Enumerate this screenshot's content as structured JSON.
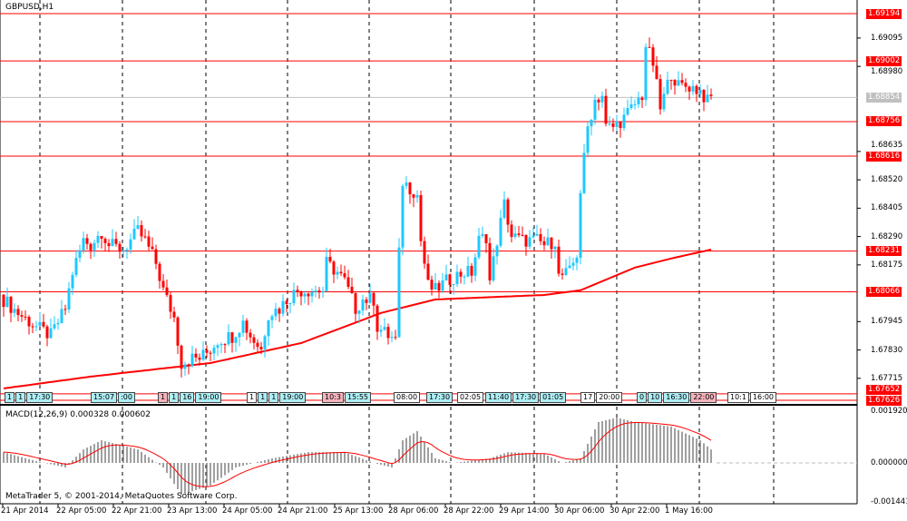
{
  "symbol_label": "GBPUSD,H1",
  "macd_label": "MACD(12,26,9) 0.000328 0.000602",
  "copyright": "MetaTrader 5, © 2001-2014, MetaQuotes Software Corp.",
  "colors": {
    "bull": "#1ec8ff",
    "bear": "#ff0000",
    "ma": "#ff0000",
    "level": "#ff0000",
    "bid": "#c0c0c0",
    "macd_hist": "#808080",
    "signal": "#ff0000"
  },
  "price_levels": [
    {
      "label": "1.69194",
      "value": 1.69194
    },
    {
      "label": "1.69002",
      "value": 1.69002
    },
    {
      "label": "1.68756",
      "value": 1.68756
    },
    {
      "label": "1.68616",
      "value": 1.68616
    },
    {
      "label": "1.68231",
      "value": 1.68231
    },
    {
      "label": "1.68066",
      "value": 1.68066
    },
    {
      "label": "1.67652",
      "value": 1.67652
    },
    {
      "label": "1.67626",
      "value": 1.67626
    }
  ],
  "bid": {
    "label": "1.68854",
    "value": 1.68854
  },
  "y_ticks": [
    "1.69095",
    "1.68980",
    "1.68635",
    "1.68520",
    "1.68405",
    "1.68290",
    "1.68175",
    "1.67945",
    "1.67830",
    "1.67715"
  ],
  "macd_ticks": [
    "0.001920",
    "0.000000",
    "-0.001441"
  ],
  "x_ticks": [
    "21 Apr 2014",
    "22 Apr 05:00",
    "22 Apr 21:00",
    "23 Apr 13:00",
    "24 Apr 05:00",
    "24 Apr 21:00",
    "25 Apr 13:00",
    "28 Apr 06:00",
    "28 Apr 22:00",
    "29 Apr 14:00",
    "30 Apr 06:00",
    "30 Apr 22:00",
    "1 May 16:00"
  ],
  "events": [
    {
      "text": "1",
      "style": "blue"
    },
    {
      "text": "1",
      "style": "blue"
    },
    {
      "text": "17:30",
      "style": "blue"
    },
    {
      "text": "15:07",
      "style": "blue"
    },
    {
      "text": ":00",
      "style": "blue"
    },
    {
      "text": "1",
      "style": "pink"
    },
    {
      "text": "1",
      "style": "blue"
    },
    {
      "text": "16",
      "style": "blue"
    },
    {
      "text": "19:00",
      "style": "blue"
    },
    {
      "text": "1",
      "style": ""
    },
    {
      "text": "1",
      "style": "blue"
    },
    {
      "text": "1",
      "style": "blue"
    },
    {
      "text": "19:00",
      "style": "blue"
    },
    {
      "text": "10:3",
      "style": "pink"
    },
    {
      "text": "15:55",
      "style": "blue"
    },
    {
      "text": "08:00",
      "style": ""
    },
    {
      "text": "17:30",
      "style": "blue"
    },
    {
      "text": "02:05",
      "style": ""
    },
    {
      "text": "11:40",
      "style": "blue"
    },
    {
      "text": "17:30",
      "style": "blue"
    },
    {
      "text": "01:05",
      "style": "blue"
    },
    {
      "text": "17",
      "style": ""
    },
    {
      "text": "20:00",
      "style": ""
    },
    {
      "text": "0",
      "style": "blue"
    },
    {
      "text": "10",
      "style": "blue"
    },
    {
      "text": "16:30",
      "style": "blue"
    },
    {
      "text": "22:00",
      "style": "pink"
    },
    {
      "text": "10:1",
      "style": ""
    },
    {
      "text": "16:00",
      "style": ""
    }
  ],
  "chart_data": {
    "type": "candlestick",
    "timeframe": "H1",
    "close_keypoints": [
      [
        0,
        1.68035
      ],
      [
        4,
        1.67979
      ],
      [
        9,
        1.67924
      ],
      [
        13,
        1.67888
      ],
      [
        17,
        1.67998
      ],
      [
        19,
        1.68145
      ],
      [
        22,
        1.68274
      ],
      [
        24,
        1.68256
      ],
      [
        27,
        1.68311
      ],
      [
        29,
        1.68256
      ],
      [
        33,
        1.68237
      ],
      [
        37,
        1.68311
      ],
      [
        39,
        1.68274
      ],
      [
        42,
        1.68182
      ],
      [
        44,
        1.68072
      ],
      [
        47,
        1.67961
      ],
      [
        49,
        1.67777
      ],
      [
        52,
        1.67796
      ],
      [
        54,
        1.67796
      ],
      [
        57,
        1.67832
      ],
      [
        59,
        1.67869
      ],
      [
        63,
        1.67888
      ],
      [
        66,
        1.67943
      ],
      [
        68,
        1.67888
      ],
      [
        71,
        1.67832
      ],
      [
        73,
        1.67979
      ],
      [
        76,
        1.67998
      ],
      [
        78,
        1.68035
      ],
      [
        81,
        1.68072
      ],
      [
        84,
        1.68072
      ],
      [
        88,
        1.68072
      ],
      [
        89,
        1.68182
      ],
      [
        92,
        1.68145
      ],
      [
        94,
        1.68108
      ],
      [
        97,
        1.67998
      ],
      [
        99,
        1.68035
      ],
      [
        102,
        1.68035
      ],
      [
        103,
        1.67924
      ],
      [
        106,
        1.67888
      ],
      [
        108,
        1.67869
      ],
      [
        109,
        1.68219
      ],
      [
        110,
        1.68513
      ],
      [
        113,
        1.68476
      ],
      [
        114,
        1.68458
      ],
      [
        115,
        1.68274
      ],
      [
        117,
        1.6809
      ],
      [
        119,
        1.68072
      ],
      [
        122,
        1.68108
      ],
      [
        124,
        1.68127
      ],
      [
        127,
        1.68145
      ],
      [
        129,
        1.68145
      ],
      [
        131,
        1.68274
      ],
      [
        133,
        1.68292
      ],
      [
        134,
        1.68108
      ],
      [
        136,
        1.68274
      ],
      [
        138,
        1.68421
      ],
      [
        140,
        1.68292
      ],
      [
        143,
        1.68274
      ],
      [
        147,
        1.68274
      ],
      [
        149,
        1.68256
      ],
      [
        152,
        1.68274
      ],
      [
        153,
        1.68127
      ],
      [
        156,
        1.68145
      ],
      [
        158,
        1.68219
      ],
      [
        159,
        1.68476
      ],
      [
        161,
        1.68734
      ],
      [
        163,
        1.68844
      ],
      [
        165,
        1.68863
      ],
      [
        166,
        1.68734
      ],
      [
        168,
        1.68734
      ],
      [
        171,
        1.68771
      ],
      [
        173,
        1.68808
      ],
      [
        176,
        1.68863
      ],
      [
        177,
        1.69065
      ],
      [
        179,
        1.68992
      ],
      [
        181,
        1.68808
      ],
      [
        184,
        1.68955
      ],
      [
        186,
        1.689
      ],
      [
        189,
        1.689
      ],
      [
        192,
        1.68881
      ],
      [
        194,
        1.68837
      ],
      [
        195,
        1.68852
      ]
    ],
    "ma_keypoints": [
      [
        0,
        1.67674
      ],
      [
        24,
        1.67722
      ],
      [
        57,
        1.67777
      ],
      [
        82,
        1.67858
      ],
      [
        104,
        1.6798
      ],
      [
        119,
        1.68035
      ],
      [
        149,
        1.68053
      ],
      [
        159,
        1.68072
      ],
      [
        174,
        1.68164
      ],
      [
        184,
        1.68201
      ],
      [
        195,
        1.68237
      ]
    ],
    "macd_hist_keypoints": [
      [
        0,
        0.0004
      ],
      [
        9,
        7e-05
      ],
      [
        17,
        -0.00017
      ],
      [
        22,
        0.0005
      ],
      [
        27,
        0.00084
      ],
      [
        37,
        0.0005
      ],
      [
        44,
        -0.00017
      ],
      [
        49,
        -0.00118
      ],
      [
        57,
        -0.00084
      ],
      [
        64,
        -0.00017
      ],
      [
        74,
        0.00017
      ],
      [
        84,
        0.0004
      ],
      [
        94,
        0.0004
      ],
      [
        102,
        0
      ],
      [
        107,
        -0.00017
      ],
      [
        110,
        0.00084
      ],
      [
        114,
        0.00118
      ],
      [
        119,
        0.00017
      ],
      [
        124,
        0
      ],
      [
        134,
        0.00017
      ],
      [
        139,
        0.0004
      ],
      [
        149,
        0.00034
      ],
      [
        154,
        0
      ],
      [
        159,
        0.00017
      ],
      [
        164,
        0.00152
      ],
      [
        169,
        0.00168
      ],
      [
        174,
        0.00152
      ],
      [
        184,
        0.00135
      ],
      [
        192,
        0.00084
      ],
      [
        195,
        0.0005
      ]
    ],
    "price_range": [
      1.67626,
      1.69194
    ],
    "macd_range": [
      -0.001441,
      0.00192
    ]
  }
}
